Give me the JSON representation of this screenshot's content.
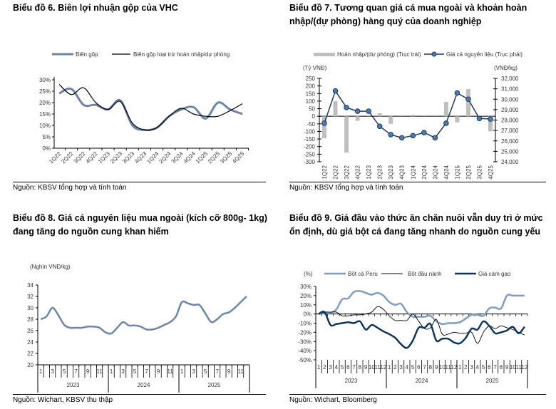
{
  "panels": [
    {
      "title": "Biểu đồ 6. Biên lợi nhuận gộp của VHC",
      "source": "Nguồn: KBSV tổng hợp và tính toán"
    },
    {
      "title": "Biểu đồ 7. Tương quan giá cá mua ngoài và khoản hoàn nhập/(dự phòng) hàng quý của doanh nghiệp",
      "source": "Nguồn: KBSV tổng hợp và tính toán"
    },
    {
      "title": "Biểu đồ 8. Giá cá nguyên liệu mua ngoài (kích cỡ 800g- 1kg) đang tăng do nguồn cung khan hiếm",
      "source": "Nguồn: Wichart, KBSV thu thập"
    },
    {
      "title": "Biểu đồ 9. Giá đầu vào thức ăn chăn nuôi vẫn duy trì ở mức ổn định, dù giá bột cá đang tăng nhanh do nguồn cung yếu",
      "source": "Nguồn: Wichart, Bloomberg"
    }
  ],
  "chart_data": [
    {
      "type": "line",
      "title": "Biểu đồ 6. Biên lợi nhuận gộp của VHC",
      "categories": [
        "1Q22",
        "2Q22",
        "3Q22",
        "4Q22",
        "1Q23",
        "2Q23",
        "3Q23",
        "4Q23",
        "1Q24",
        "2Q24",
        "3Q24",
        "4Q24",
        "1Q25",
        "2Q25",
        "3Q25",
        "4Q25"
      ],
      "yticks": [
        "0%",
        "5%",
        "10%",
        "15%",
        "20%",
        "25%",
        "30%"
      ],
      "ylim": [
        0,
        30
      ],
      "series": [
        {
          "name": "Biên gộp",
          "color": "#6b86aa",
          "values": [
            24,
            26,
            19,
            19,
            17,
            21,
            10,
            8,
            9,
            14,
            17,
            18,
            13,
            20,
            17,
            15
          ]
        },
        {
          "name": "Biên gộp loại trừ hoàn nhập/dự phòng",
          "color": "#000000",
          "values": [
            28,
            23.5,
            26.5,
            20,
            17,
            20.5,
            11,
            8,
            9,
            14,
            17.5,
            15,
            14,
            14,
            16.5,
            19.5
          ]
        }
      ]
    },
    {
      "type": "bar+line",
      "title": "Biểu đồ 7",
      "categories": [
        "1Q22",
        "2Q22",
        "3Q22",
        "4Q22",
        "1Q23",
        "2Q23",
        "3Q23",
        "4Q23",
        "1Q24",
        "2Q24",
        "3Q24",
        "4Q24",
        "1Q25",
        "2Q25",
        "3Q25",
        "4Q25"
      ],
      "ylabel_left": "(Tỷ VNĐ)",
      "ylabel_right": "(VNĐ/kg)",
      "yticks_left": [
        "250",
        "200",
        "150",
        "100",
        "50",
        "0",
        "-50",
        "-100",
        "-150",
        "-200",
        "-250",
        "-300"
      ],
      "ylim_left": [
        -300,
        250
      ],
      "yticks_right": [
        "32,000",
        "31,000",
        "30,000",
        "29,000",
        "28,000",
        "27,000",
        "26,000",
        "25,000",
        "24,000"
      ],
      "ylim_right": [
        24000,
        32000
      ],
      "series": [
        {
          "name": "Hoàn nhập/(dự phòng) (Trục trái)",
          "type": "bar",
          "color": "#bfbfbf",
          "values": [
            -145,
            100,
            -240,
            -30,
            0,
            20,
            -50,
            0,
            10,
            0,
            0,
            95,
            -40,
            180,
            0,
            -100
          ]
        },
        {
          "name": "Giá cá nguyên liệu (Trục phải)",
          "type": "line",
          "color": "#1f3b5e",
          "values": [
            27700,
            30800,
            29200,
            28850,
            28850,
            27400,
            26600,
            26300,
            26500,
            26800,
            26300,
            27700,
            30600,
            30000,
            28150,
            28100
          ]
        }
      ]
    },
    {
      "type": "line",
      "title": "Biểu đồ 8",
      "ylabel": "(Nghìn VNĐ/kg)",
      "years": [
        "2023",
        "2024",
        "2025"
      ],
      "month_labels": [
        "1",
        "3",
        "5",
        "7",
        "9",
        "11"
      ],
      "yticks": [
        "20",
        "22",
        "24",
        "26",
        "28",
        "30",
        "32",
        "34"
      ],
      "ylim": [
        20,
        34
      ],
      "series": [
        {
          "name": "Giá cá nguyên liệu",
          "color": "#6b86aa",
          "values": [
            28,
            28.5,
            30,
            28.7,
            27,
            26.5,
            26.5,
            26.5,
            26.7,
            26.7,
            26.5,
            25.7,
            25.5,
            26.5,
            27.5,
            26.9,
            26.9,
            26.7,
            26.2,
            26.2,
            26.5,
            27,
            27.5,
            28.5,
            31,
            30.8,
            30.5,
            30.5,
            29,
            27.5,
            28,
            28.9,
            29.2,
            30,
            31,
            32
          ]
        }
      ]
    },
    {
      "type": "line",
      "title": "Biểu đồ 9",
      "ylabel": "(%)",
      "years": [
        "2023",
        "2024",
        "2025"
      ],
      "month_labels": [
        "1",
        "2",
        "3",
        "4",
        "5",
        "6",
        "7",
        "8",
        "9",
        "10",
        "11",
        "12"
      ],
      "yticks": [
        "-50%",
        "-40%",
        "-30%",
        "-20%",
        "-10%",
        "0%",
        "10%",
        "20%",
        "30%"
      ],
      "ylim": [
        -50,
        30
      ],
      "series": [
        {
          "name": "Bột cá Peru",
          "color": "#7f9cc4",
          "width": 2.5,
          "values": [
            0,
            1,
            1,
            5,
            16,
            17,
            24,
            25,
            23,
            21,
            23,
            20,
            13,
            10,
            11,
            2,
            -3,
            -3,
            -3,
            -2,
            -8,
            -11,
            -10,
            -10,
            -9,
            -5,
            -1,
            -1,
            -2,
            6,
            7,
            6,
            20,
            20,
            20,
            20
          ]
        },
        {
          "name": "Bột đậu nành",
          "color": "#000000",
          "width": 0.9,
          "values": [
            0,
            2,
            2,
            2,
            -2,
            -2,
            -1,
            -1,
            0,
            2,
            8,
            5,
            -2,
            -7,
            -7,
            -7,
            0,
            -8,
            -16,
            -15,
            -6,
            -22,
            -22,
            -20,
            -21,
            -21,
            -20,
            -32,
            -20,
            -13,
            -16,
            -13,
            -15,
            -17,
            -20,
            -23
          ]
        },
        {
          "name": "Giá cám gạo",
          "color": "#0e3560",
          "width": 2.5,
          "values": [
            0,
            2,
            -12,
            -11,
            -10,
            -9,
            -10,
            -8,
            -17,
            -12,
            -15,
            -19,
            -22,
            -26,
            -33,
            -37,
            -29,
            -15,
            -15,
            -11,
            -29,
            -27,
            -27,
            -31,
            -32,
            -26,
            -16,
            -17,
            -8,
            -13,
            -21,
            -20,
            -18,
            -14,
            -21,
            -14
          ]
        }
      ]
    }
  ]
}
